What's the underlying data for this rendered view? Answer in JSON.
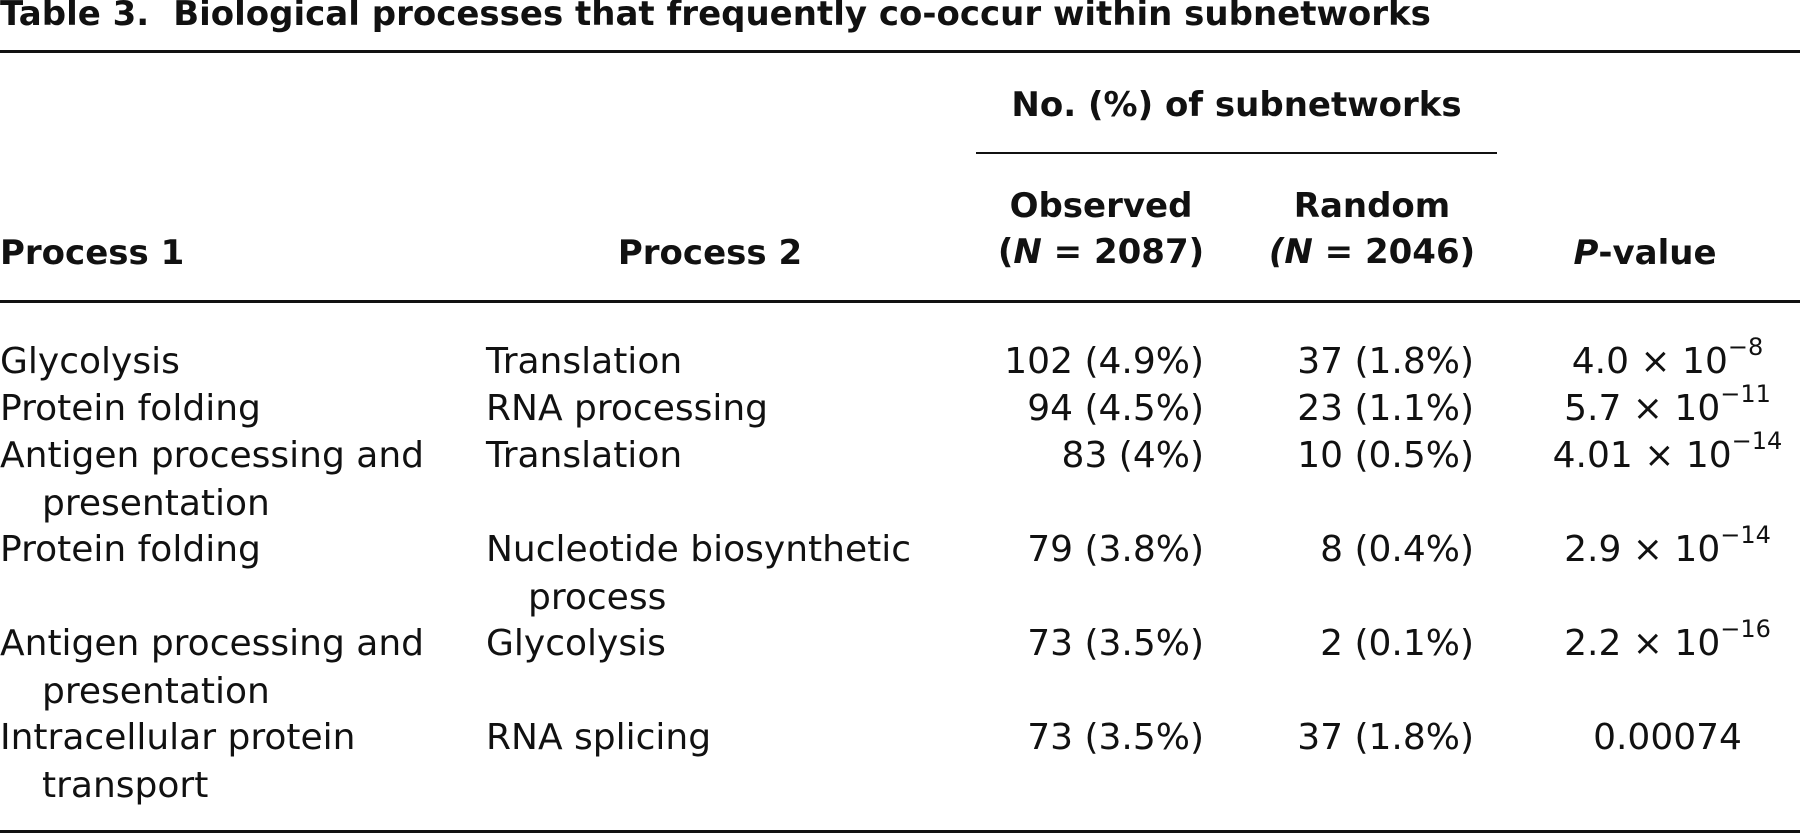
{
  "table": {
    "label": "Table 3.",
    "title": "Biological processes that frequently co-occur within subnetworks",
    "spanner": "No. (%) of subnetworks",
    "headers": {
      "process1": "Process 1",
      "process2": "Process 2",
      "observed_line1": "Observed",
      "observed_N": "N",
      "observed_rest": " = 2087)",
      "random_line1": "Random",
      "random_N": "N",
      "random_rest": " = 2046)",
      "pvalue_P": "P",
      "pvalue_rest": "-value"
    },
    "rows": [
      {
        "p1": "Glycolysis",
        "p1b": "",
        "p2": "Translation",
        "p2b": "",
        "obs": "102 (4.9%)",
        "rnd": "37 (1.8%)",
        "pv": "4.0 × 10",
        "exp": "−8"
      },
      {
        "p1": "Protein folding",
        "p1b": "",
        "p2": "RNA processing",
        "p2b": "",
        "obs": "94 (4.5%)",
        "rnd": "23 (1.1%)",
        "pv": "5.7 × 10",
        "exp": "−11"
      },
      {
        "p1": "Antigen processing and",
        "p1b": "presentation",
        "p2": "Translation",
        "p2b": "",
        "obs": "83 (4%)",
        "rnd": "10 (0.5%)",
        "pv": "4.01 × 10",
        "exp": "−14"
      },
      {
        "p1": "Protein folding",
        "p1b": "",
        "p2": "Nucleotide biosynthetic",
        "p2b": "process",
        "obs": "79 (3.8%)",
        "rnd": "8 (0.4%)",
        "pv": "2.9 × 10",
        "exp": "−14"
      },
      {
        "p1": "Antigen processing and",
        "p1b": "presentation",
        "p2": "Glycolysis",
        "p2b": "",
        "obs": "73 (3.5%)",
        "rnd": "2 (0.1%)",
        "pv": "2.2 × 10",
        "exp": "−16"
      },
      {
        "p1": "Intracellular protein",
        "p1b": "transport",
        "p2": "RNA splicing",
        "p2b": "",
        "obs": "73 (3.5%)",
        "rnd": "37 (1.8%)",
        "pv": "0.00074",
        "exp": ""
      }
    ]
  }
}
